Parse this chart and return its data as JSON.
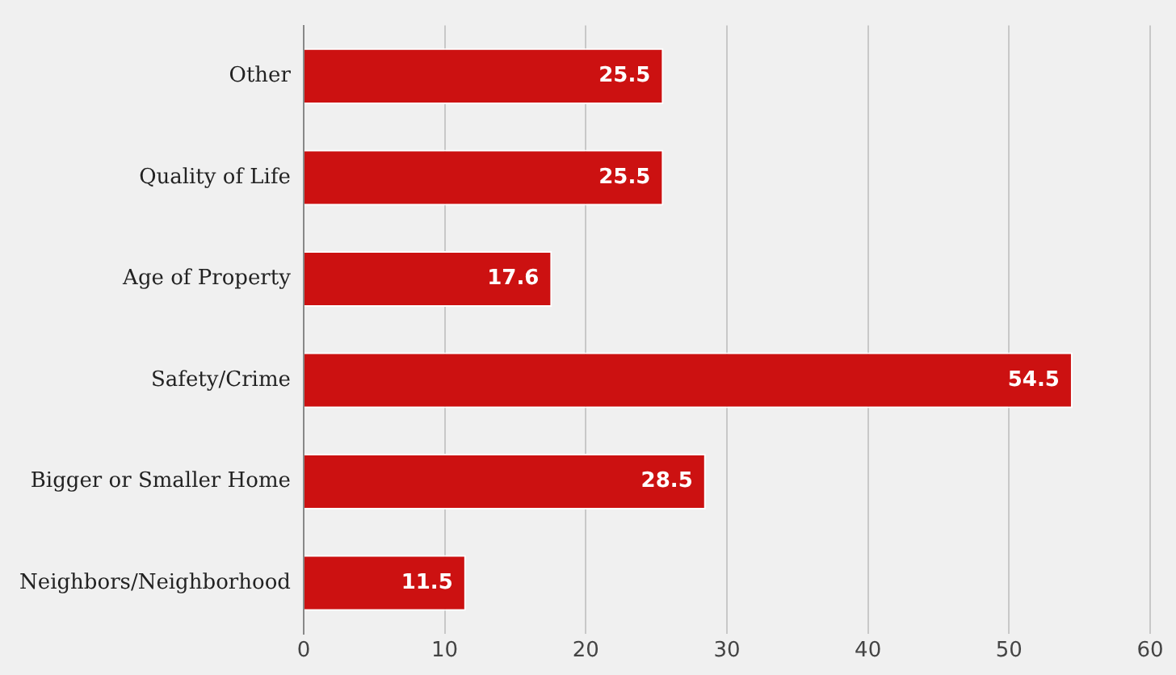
{
  "chart_data": {
    "type": "bar",
    "orientation": "horizontal",
    "categories": [
      "Other",
      "Quality of Life",
      "Age of Property",
      "Safety/Crime",
      "Bigger or Smaller Home",
      "Neighbors/Neighborhood"
    ],
    "values": [
      25.5,
      25.5,
      17.6,
      54.5,
      28.5,
      11.5
    ],
    "color": "#cc1111",
    "xlim": [
      0,
      60
    ],
    "xticks": [
      0,
      10,
      20,
      30,
      40,
      50,
      60
    ],
    "grid": "x",
    "data_labels": true
  }
}
